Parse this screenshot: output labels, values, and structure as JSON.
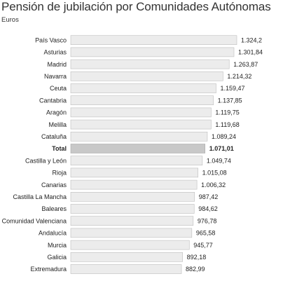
{
  "chart_data": {
    "type": "bar",
    "orientation": "horizontal",
    "title": "Pensión de jubilación por Comunidades Autónomas",
    "subtitle": "Euros",
    "categories": [
      "País Vasco",
      "Asturias",
      "Madrid",
      "Navarra",
      "Ceuta",
      "Cantabria",
      "Aragón",
      "Melilla",
      "Cataluña",
      "Total",
      "Castilla y León",
      "Rioja",
      "Canarias",
      "Castilla La Mancha",
      "Baleares",
      "Comunidad Valenciana",
      "Andalucía",
      "Murcia",
      "Galicia",
      "Extremadura"
    ],
    "values": [
      1324.2,
      1301.84,
      1263.87,
      1214.32,
      1159.47,
      1137.85,
      1119.75,
      1119.68,
      1089.24,
      1071.01,
      1049.74,
      1015.08,
      1006.32,
      987.42,
      984.62,
      976.78,
      965.58,
      945.77,
      892.18,
      882.99
    ],
    "value_labels": [
      "1.324,2",
      "1.301,84",
      "1.263,87",
      "1.214,32",
      "1.159,47",
      "1.137,85",
      "1.119,75",
      "1.119,68",
      "1.089,24",
      "1.071,01",
      "1.049,74",
      "1.015,08",
      "1.006,32",
      "987,42",
      "984,62",
      "976,78",
      "965,58",
      "945,77",
      "892,18",
      "882,99"
    ],
    "highlight_category": "Total",
    "colors": {
      "bar": "#ececec",
      "bar_stroke": "#bdbdbd",
      "highlight": "#c8c8c8",
      "highlight_stroke": "#a9a9a9"
    },
    "grid": false,
    "legend": "none"
  }
}
